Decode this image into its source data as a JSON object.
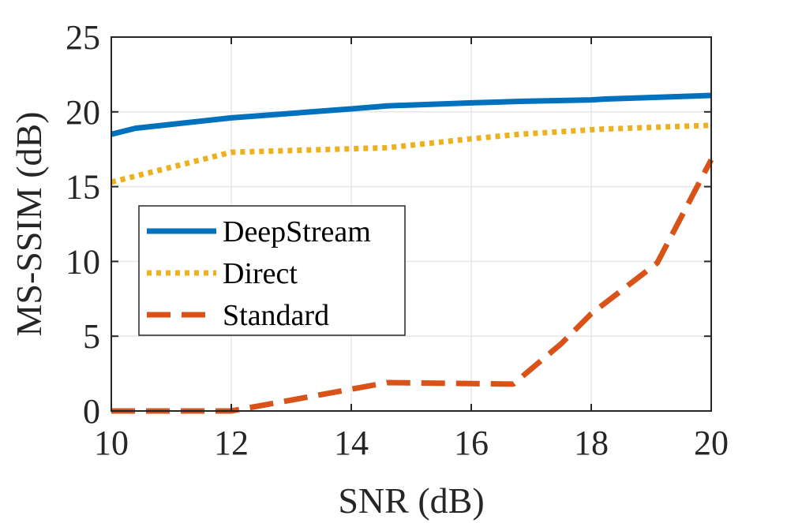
{
  "chart_data": {
    "type": "line",
    "title": "",
    "xlabel": "SNR (dB)",
    "ylabel": "MS-SSIM (dB)",
    "xlim": [
      10,
      20
    ],
    "ylim": [
      0,
      25
    ],
    "xticks": [
      10,
      12,
      14,
      16,
      18,
      20
    ],
    "yticks": [
      0,
      5,
      10,
      15,
      20,
      25
    ],
    "grid": true,
    "legend_position": "center-left",
    "series": [
      {
        "name": "DeepStream",
        "color": "#0072BD",
        "style": "solid",
        "x": [
          10,
          10.4,
          12,
          14,
          14.6,
          16,
          16.8,
          18,
          18.2,
          20
        ],
        "y": [
          18.5,
          18.9,
          19.6,
          20.2,
          20.4,
          20.6,
          20.7,
          20.8,
          20.85,
          21.1
        ]
      },
      {
        "name": "Direct",
        "color": "#EDB120",
        "style": "dotted",
        "x": [
          10,
          10.6,
          12,
          14.6,
          16,
          16.8,
          18,
          18.2,
          20
        ],
        "y": [
          15.3,
          15.9,
          17.3,
          17.6,
          18.2,
          18.5,
          18.8,
          18.85,
          19.1
        ]
      },
      {
        "name": "Standard",
        "color": "#D95319",
        "style": "dashed",
        "x": [
          10,
          12,
          14.6,
          16.7,
          17.5,
          18,
          19.1,
          20
        ],
        "y": [
          0,
          0,
          1.9,
          1.8,
          4.5,
          6.5,
          9.9,
          16.8
        ]
      }
    ]
  }
}
